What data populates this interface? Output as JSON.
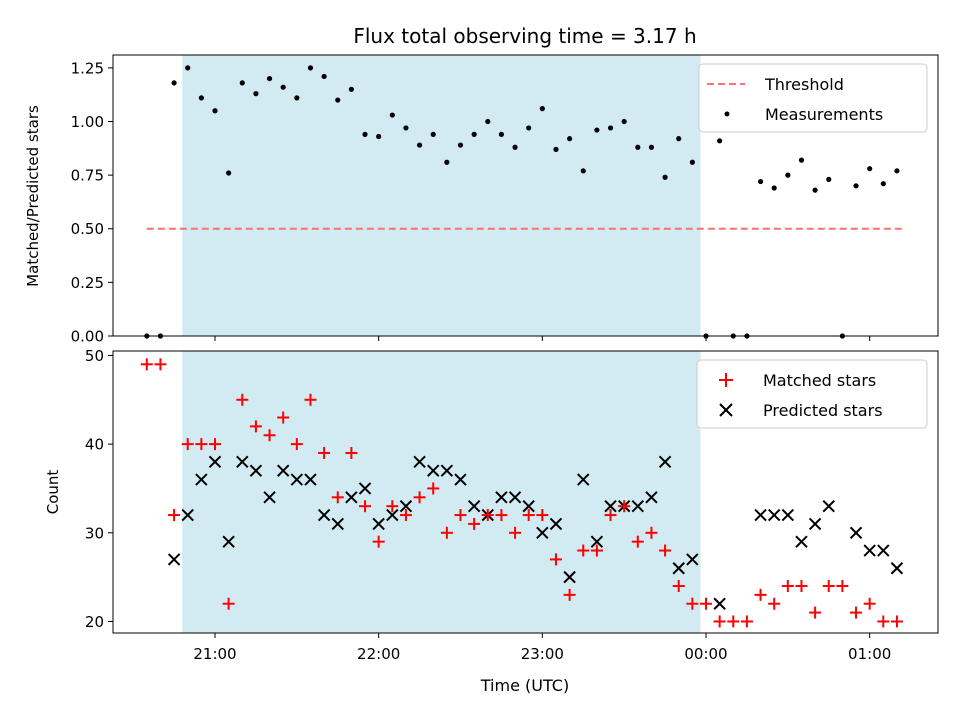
{
  "title": "Flux total observing time = 3.17 h",
  "colors": {
    "threshold": "#ff7070",
    "measurement": "#000000",
    "matched": "#ff0000",
    "predicted": "#000000",
    "observing_band": "#add8e6"
  },
  "chart_data": [
    {
      "type": "scatter",
      "panel": "top",
      "ylabel": "Matched/Predicted stars",
      "ylim": [
        0,
        1.31
      ],
      "yticks": [
        "0.00",
        "0.25",
        "0.50",
        "0.75",
        "1.00",
        "1.25"
      ],
      "ytick_values": [
        0,
        0.25,
        0.5,
        0.75,
        1.0,
        1.25
      ],
      "legend_position": "upper right",
      "legend": [
        "Threshold",
        "Measurements"
      ],
      "threshold": {
        "name": "Threshold",
        "y": 0.5,
        "x_start": "20:35",
        "x_end": "01:12"
      },
      "shaded_interval": [
        "20:48",
        "23:58"
      ],
      "series": [
        {
          "name": "Measurements",
          "points": [
            [
              "20:35",
              0.0
            ],
            [
              "20:40",
              0.0
            ],
            [
              "20:45",
              1.18
            ],
            [
              "20:50",
              1.25
            ],
            [
              "20:55",
              1.11
            ],
            [
              "21:00",
              1.05
            ],
            [
              "21:05",
              0.76
            ],
            [
              "21:10",
              1.18
            ],
            [
              "21:15",
              1.13
            ],
            [
              "21:20",
              1.2
            ],
            [
              "21:25",
              1.16
            ],
            [
              "21:30",
              1.11
            ],
            [
              "21:35",
              1.25
            ],
            [
              "21:40",
              1.21
            ],
            [
              "21:45",
              1.1
            ],
            [
              "21:50",
              1.15
            ],
            [
              "21:55",
              0.94
            ],
            [
              "22:00",
              0.93
            ],
            [
              "22:05",
              1.03
            ],
            [
              "22:10",
              0.97
            ],
            [
              "22:15",
              0.89
            ],
            [
              "22:20",
              0.94
            ],
            [
              "22:25",
              0.81
            ],
            [
              "22:30",
              0.89
            ],
            [
              "22:35",
              0.94
            ],
            [
              "22:40",
              1.0
            ],
            [
              "22:45",
              0.94
            ],
            [
              "22:50",
              0.88
            ],
            [
              "22:55",
              0.97
            ],
            [
              "23:00",
              1.06
            ],
            [
              "23:05",
              0.87
            ],
            [
              "23:10",
              0.92
            ],
            [
              "23:15",
              0.77
            ],
            [
              "23:20",
              0.96
            ],
            [
              "23:25",
              0.97
            ],
            [
              "23:30",
              1.0
            ],
            [
              "23:35",
              0.88
            ],
            [
              "23:40",
              0.88
            ],
            [
              "23:45",
              0.74
            ],
            [
              "23:50",
              0.92
            ],
            [
              "23:55",
              0.81
            ],
            [
              "00:00",
              0.0
            ],
            [
              "00:05",
              0.91
            ],
            [
              "00:10",
              0.0
            ],
            [
              "00:15",
              0.0
            ],
            [
              "00:20",
              0.72
            ],
            [
              "00:25",
              0.69
            ],
            [
              "00:30",
              0.75
            ],
            [
              "00:35",
              0.82
            ],
            [
              "00:40",
              0.68
            ],
            [
              "00:45",
              0.73
            ],
            [
              "00:50",
              0.0
            ],
            [
              "00:55",
              0.7
            ],
            [
              "01:00",
              0.78
            ],
            [
              "01:05",
              0.71
            ],
            [
              "01:10",
              0.77
            ]
          ]
        }
      ]
    },
    {
      "type": "scatter",
      "panel": "bottom",
      "xlabel": "Time (UTC)",
      "ylabel": "Count",
      "ylim": [
        18.7,
        50.5
      ],
      "yticks": [
        "20",
        "30",
        "40",
        "50"
      ],
      "ytick_values": [
        20,
        30,
        40,
        50
      ],
      "xticks": [
        "21:00",
        "22:00",
        "23:00",
        "00:00",
        "01:00"
      ],
      "legend_position": "upper right",
      "legend": [
        "Matched stars",
        "Predicted stars"
      ],
      "shaded_interval": [
        "20:48",
        "23:58"
      ],
      "series": [
        {
          "name": "Matched stars",
          "marker": "+",
          "points": [
            [
              "20:35",
              49
            ],
            [
              "20:40",
              49
            ],
            [
              "20:45",
              32
            ],
            [
              "20:50",
              40
            ],
            [
              "20:55",
              40
            ],
            [
              "21:00",
              40
            ],
            [
              "21:05",
              22
            ],
            [
              "21:10",
              45
            ],
            [
              "21:15",
              42
            ],
            [
              "21:20",
              41
            ],
            [
              "21:25",
              43
            ],
            [
              "21:30",
              40
            ],
            [
              "21:35",
              45
            ],
            [
              "21:40",
              39
            ],
            [
              "21:45",
              34
            ],
            [
              "21:50",
              39
            ],
            [
              "21:55",
              33
            ],
            [
              "22:00",
              29
            ],
            [
              "22:05",
              33
            ],
            [
              "22:10",
              32
            ],
            [
              "22:15",
              34
            ],
            [
              "22:20",
              35
            ],
            [
              "22:25",
              30
            ],
            [
              "22:30",
              32
            ],
            [
              "22:35",
              31
            ],
            [
              "22:40",
              32
            ],
            [
              "22:45",
              32
            ],
            [
              "22:50",
              30
            ],
            [
              "22:55",
              32
            ],
            [
              "23:00",
              32
            ],
            [
              "23:05",
              27
            ],
            [
              "23:10",
              23
            ],
            [
              "23:15",
              28
            ],
            [
              "23:20",
              28
            ],
            [
              "23:25",
              32
            ],
            [
              "23:30",
              33
            ],
            [
              "23:35",
              29
            ],
            [
              "23:40",
              30
            ],
            [
              "23:45",
              28
            ],
            [
              "23:50",
              24
            ],
            [
              "23:55",
              22
            ],
            [
              "00:00",
              22
            ],
            [
              "00:05",
              20
            ],
            [
              "00:10",
              20
            ],
            [
              "00:15",
              20
            ],
            [
              "00:20",
              23
            ],
            [
              "00:25",
              22
            ],
            [
              "00:30",
              24
            ],
            [
              "00:35",
              24
            ],
            [
              "00:40",
              21
            ],
            [
              "00:45",
              24
            ],
            [
              "00:50",
              24
            ],
            [
              "00:55",
              21
            ],
            [
              "01:00",
              22
            ],
            [
              "01:05",
              20
            ],
            [
              "01:10",
              20
            ]
          ]
        },
        {
          "name": "Predicted stars",
          "marker": "x",
          "points": [
            [
              "20:45",
              27
            ],
            [
              "20:50",
              32
            ],
            [
              "20:55",
              36
            ],
            [
              "21:00",
              38
            ],
            [
              "21:05",
              29
            ],
            [
              "21:10",
              38
            ],
            [
              "21:15",
              37
            ],
            [
              "21:20",
              34
            ],
            [
              "21:25",
              37
            ],
            [
              "21:30",
              36
            ],
            [
              "21:35",
              36
            ],
            [
              "21:40",
              32
            ],
            [
              "21:45",
              31
            ],
            [
              "21:50",
              34
            ],
            [
              "21:55",
              35
            ],
            [
              "22:00",
              31
            ],
            [
              "22:05",
              32
            ],
            [
              "22:10",
              33
            ],
            [
              "22:15",
              38
            ],
            [
              "22:20",
              37
            ],
            [
              "22:25",
              37
            ],
            [
              "22:30",
              36
            ],
            [
              "22:35",
              33
            ],
            [
              "22:40",
              32
            ],
            [
              "22:45",
              34
            ],
            [
              "22:50",
              34
            ],
            [
              "22:55",
              33
            ],
            [
              "23:00",
              30
            ],
            [
              "23:05",
              31
            ],
            [
              "23:10",
              25
            ],
            [
              "23:15",
              36
            ],
            [
              "23:20",
              29
            ],
            [
              "23:25",
              33
            ],
            [
              "23:30",
              33
            ],
            [
              "23:35",
              33
            ],
            [
              "23:40",
              34
            ],
            [
              "23:45",
              38
            ],
            [
              "23:50",
              26
            ],
            [
              "23:55",
              27
            ],
            [
              "00:05",
              22
            ],
            [
              "00:20",
              32
            ],
            [
              "00:25",
              32
            ],
            [
              "00:30",
              32
            ],
            [
              "00:35",
              29
            ],
            [
              "00:40",
              31
            ],
            [
              "00:45",
              33
            ],
            [
              "00:55",
              30
            ],
            [
              "01:00",
              28
            ],
            [
              "01:05",
              28
            ],
            [
              "01:10",
              26
            ]
          ]
        }
      ]
    }
  ]
}
